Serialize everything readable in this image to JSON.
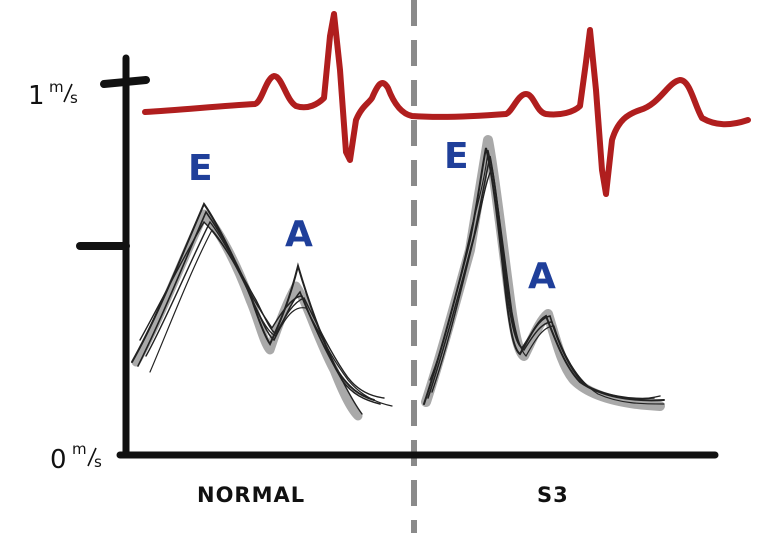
{
  "axis": {
    "top_value": "1",
    "bottom_value": "0",
    "unit_top": "m",
    "unit_bottom": "s"
  },
  "sections": {
    "left": "NORMAL",
    "right": "S3"
  },
  "peaks": {
    "normal_e": "E",
    "normal_a": "A",
    "s3_e": "E",
    "s3_a": "A"
  },
  "colors": {
    "ecg": "#b01e1e",
    "peak_letters": "#1f3f9a",
    "velocity": "#222222",
    "velocity_shadow": "#8c8c8c",
    "divider": "#8a8a8a",
    "axis": "#111111"
  }
}
